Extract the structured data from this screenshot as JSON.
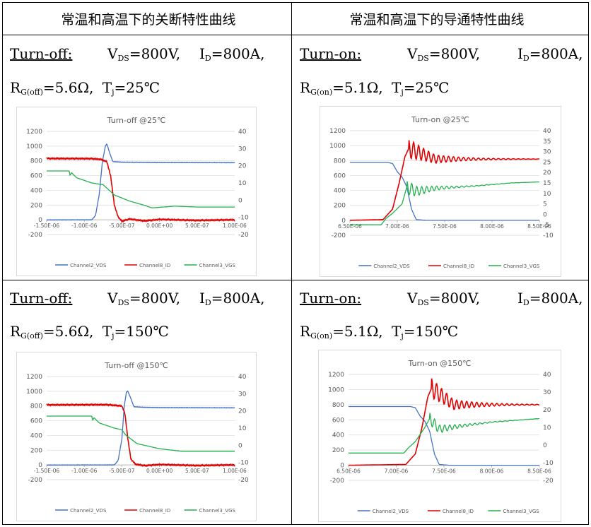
{
  "headers": [
    "常温和高温下的关断特性曲线",
    "常温和高温下的导通特性曲线"
  ],
  "cells": [
    {
      "mode": "Turn-off:",
      "vds": "V",
      "vds_sub": "DS",
      "vds_val": "=800V,",
      "id": "I",
      "id_sub": "D",
      "id_val": "=800A,",
      "rg": "R",
      "rg_sub": "G(off)",
      "rg_val": "=5.6Ω,",
      "tj": "T",
      "tj_sub": "j",
      "tj_val": "=25℃"
    },
    {
      "mode": "Turn-on:",
      "vds": "V",
      "vds_sub": "DS",
      "vds_val": "=800V,",
      "id": "I",
      "id_sub": "D",
      "id_val": "=800A,",
      "rg": "R",
      "rg_sub": "G(on)",
      "rg_val": "=5.1Ω,",
      "tj": "T",
      "tj_sub": "j",
      "tj_val": "=25℃"
    },
    {
      "mode": "Turn-off:",
      "vds": "V",
      "vds_sub": "DS",
      "vds_val": "=800V,",
      "id": "I",
      "id_sub": "D",
      "id_val": "=800A,",
      "rg": "R",
      "rg_sub": "G(off)",
      "rg_val": "=5.6Ω,",
      "tj": "T",
      "tj_sub": "j",
      "tj_val": "=150℃"
    },
    {
      "mode": "Turn-on:",
      "vds": "V",
      "vds_sub": "DS",
      "vds_val": "=800V,",
      "id": "I",
      "id_sub": "D",
      "id_val": "=800A,",
      "rg": "R",
      "rg_sub": "G(on)",
      "rg_val": "=5.1Ω,",
      "tj": "T",
      "tj_sub": "j",
      "tj_val": "=150℃"
    }
  ],
  "chart_data": [
    {
      "type": "line",
      "title": "Turn-off @25℃",
      "x_ticks": [
        "-1.50E-06",
        "-1.00E-06",
        "-5.00E-07",
        "0.00E+00",
        "5.00E-07",
        "1.00E-06"
      ],
      "xlim": [
        -1.5e-06,
        1e-06
      ],
      "ylim": [
        -200,
        1200
      ],
      "y_ticks": [
        "1200",
        "1000",
        "800",
        "600",
        "400",
        "200",
        "0",
        "-200"
      ],
      "ylim_right": [
        -20,
        40
      ],
      "y2_ticks": [
        "40",
        "30",
        "20",
        "10",
        "0",
        "-10",
        "-20"
      ],
      "colors": {
        "vds": "#4472c4",
        "id": "#e00000",
        "vgs": "#22b14c"
      },
      "series": [
        {
          "name": "Channel2_VDS",
          "axis": "left",
          "x": [
            -1.5e-06,
            -9e-07,
            -8.5e-07,
            -8e-07,
            -7.6e-07,
            -7.2e-07,
            -7e-07,
            -6.6e-07,
            -6.2e-07,
            -5e-07,
            0,
            1e-06
          ],
          "y": [
            -2,
            0,
            60,
            350,
            780,
            1000,
            1030,
            900,
            790,
            782,
            778,
            775
          ]
        },
        {
          "name": "Channel8_ID",
          "axis": "left",
          "x": [
            -1.5e-06,
            -9e-07,
            -7.8e-07,
            -7e-07,
            -6.5e-07,
            -6e-07,
            -5.5e-07,
            -5e-07,
            -4e-07,
            -2e-07,
            0,
            5e-07,
            1e-06
          ],
          "y": [
            832,
            830,
            820,
            790,
            600,
            200,
            40,
            -20,
            10,
            -15,
            5,
            -8,
            0
          ]
        },
        {
          "name": "Channel3_VGS",
          "axis": "right",
          "x": [
            -1.5e-06,
            -1.2e-06,
            -1.19e-06,
            -1.17e-06,
            -1.1e-06,
            -9e-07,
            -7.5e-07,
            -6e-07,
            -4e-07,
            -2e-07,
            -1e-07,
            2e-07,
            5e-07,
            1e-06
          ],
          "y": [
            17,
            17,
            14.5,
            16,
            13,
            10,
            9,
            3,
            -0.5,
            -3,
            -4.5,
            -3.5,
            -4,
            -4
          ]
        }
      ]
    },
    {
      "type": "line",
      "title": "Turn-on @25℃",
      "x_ticks": [
        "6.50E-06",
        "7.00E-06",
        "7.50E-06",
        "8.00E-06",
        "8.50E-06"
      ],
      "xlim": [
        6.5e-06,
        8.5e-06
      ],
      "ylim": [
        -200,
        1200
      ],
      "y_ticks": [
        "1200",
        "1000",
        "800",
        "600",
        "400",
        "200",
        "0",
        "-200"
      ],
      "ylim_right": [
        -10,
        40
      ],
      "y2_ticks": [
        "40",
        "35",
        "30",
        "25",
        "20",
        "15",
        "10",
        "5",
        "0",
        "-5",
        "-10"
      ],
      "colors": {
        "vds": "#4472c4",
        "id": "#e00000",
        "vgs": "#22b14c"
      },
      "series": [
        {
          "name": "Channel2_VDS",
          "axis": "left",
          "x": [
            6.5e-06,
            6.9e-06,
            6.95e-06,
            7e-06,
            7.05e-06,
            7.1e-06,
            7.15e-06,
            7.2e-06,
            7.3e-06,
            8.5e-06
          ],
          "y": [
            775,
            775,
            760,
            650,
            580,
            450,
            150,
            10,
            0,
            0
          ]
        },
        {
          "name": "Channel8_ID",
          "axis": "left",
          "x": [
            6.5e-06,
            6.85e-06,
            6.95e-06,
            7.02e-06,
            7.08e-06,
            7.12e-06,
            7.4e-06,
            7.8e-06,
            8.5e-06
          ],
          "y": [
            0,
            10,
            150,
            500,
            850,
            960,
            820,
            820,
            820
          ]
        },
        {
          "name": "Channel3_VGS",
          "axis": "right",
          "x": [
            6.5e-06,
            6.83e-06,
            6.88e-06,
            6.95e-06,
            7.05e-06,
            7.1e-06,
            7.2e-06,
            7.4e-06,
            7.8e-06,
            8.2e-06,
            8.5e-06
          ],
          "y": [
            -5,
            -5,
            -2,
            0.5,
            5,
            13,
            11,
            12.5,
            13.5,
            15,
            15.5
          ]
        }
      ]
    },
    {
      "type": "line",
      "title": "Turn-off @150℃",
      "x_ticks": [
        "-1.50E-06",
        "-1.00E-06",
        "-5.00E-07",
        "0.00E+00",
        "5.00E-07",
        "1.00E-06"
      ],
      "xlim": [
        -1.5e-06,
        1e-06
      ],
      "ylim": [
        -200,
        1200
      ],
      "y_ticks": [
        "1200",
        "1000",
        "800",
        "600",
        "400",
        "200",
        "0",
        "-200"
      ],
      "ylim_right": [
        -20,
        40
      ],
      "y2_ticks": [
        "40",
        "30",
        "20",
        "10",
        "0",
        "-10",
        "-20"
      ],
      "colors": {
        "vds": "#4472c4",
        "id": "#e00000",
        "vgs": "#22b14c"
      },
      "series": [
        {
          "name": "Channel2_VDS",
          "axis": "left",
          "x": [
            -1.5e-06,
            -6e-07,
            -5.5e-07,
            -5e-07,
            -4.7e-07,
            -4.4e-07,
            -4.2e-07,
            -3.8e-07,
            -3.4e-07,
            -2e-07,
            0,
            1e-06
          ],
          "y": [
            -2,
            0,
            60,
            350,
            780,
            990,
            1000,
            900,
            790,
            782,
            778,
            775
          ]
        },
        {
          "name": "Channel8_ID",
          "axis": "left",
          "x": [
            -1.5e-06,
            -7e-07,
            -5e-07,
            -4.6e-07,
            -4.2e-07,
            -3.8e-07,
            -3.2e-07,
            -2e-07,
            0,
            5e-07,
            1e-06
          ],
          "y": [
            815,
            818,
            800,
            700,
            350,
            80,
            10,
            -10,
            5,
            -8,
            0
          ]
        },
        {
          "name": "Channel3_VGS",
          "axis": "right",
          "x": [
            -1.5e-06,
            -9e-07,
            -8.9e-07,
            -8.7e-07,
            -8e-07,
            -6e-07,
            -5e-07,
            -4.5e-07,
            -3e-07,
            0,
            3e-07,
            6e-07,
            1e-06
          ],
          "y": [
            17,
            17,
            14.5,
            16,
            13,
            10,
            9,
            6,
            1,
            -2,
            -3.5,
            -3.5,
            -3.5
          ]
        }
      ]
    },
    {
      "type": "line",
      "title": "Turn-on @150℃",
      "x_ticks": [
        "6.50E-06",
        "7.00E-06",
        "7.50E-06",
        "8.00E-06",
        "8.50E-06"
      ],
      "xlim": [
        6.5e-06,
        8.5e-06
      ],
      "ylim": [
        -200,
        1200
      ],
      "y_ticks": [
        "1200",
        "1000",
        "800",
        "600",
        "400",
        "200",
        "0",
        "-200"
      ],
      "ylim_right": [
        -20,
        40
      ],
      "y2_ticks": [
        "40",
        "30",
        "20",
        "10",
        "0",
        "-10",
        "-20"
      ],
      "colors": {
        "vds": "#4472c4",
        "id": "#e00000",
        "vgs": "#22b14c"
      },
      "series": [
        {
          "name": "Channel2_VDS",
          "axis": "left",
          "x": [
            6.5e-06,
            7.15e-06,
            7.2e-06,
            7.25e-06,
            7.3e-06,
            7.35e-06,
            7.4e-06,
            7.45e-06,
            7.55e-06,
            8.5e-06
          ],
          "y": [
            775,
            775,
            760,
            650,
            580,
            450,
            150,
            10,
            0,
            0
          ]
        },
        {
          "name": "Channel8_ID",
          "axis": "left",
          "x": [
            6.5e-06,
            7.1e-06,
            7.2e-06,
            7.27e-06,
            7.33e-06,
            7.37e-06,
            7.6e-06,
            8e-06,
            8.5e-06
          ],
          "y": [
            0,
            10,
            150,
            500,
            900,
            1020,
            800,
            800,
            800
          ]
        },
        {
          "name": "Channel3_VGS",
          "axis": "right",
          "x": [
            6.5e-06,
            7.08e-06,
            7.12e-06,
            7.2e-06,
            7.3e-06,
            7.35e-06,
            7.45e-06,
            7.7e-06,
            8e-06,
            8.5e-06
          ],
          "y": [
            -4.5,
            -4.5,
            -2,
            2,
            10,
            15,
            9,
            11,
            13,
            15
          ]
        }
      ]
    }
  ]
}
